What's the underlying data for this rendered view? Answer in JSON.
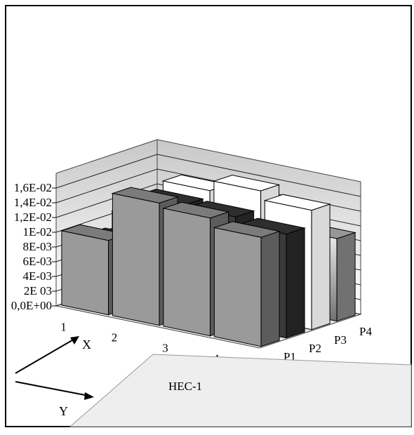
{
  "chart_data": {
    "type": "bar",
    "subtype": "3d-column",
    "categories": [
      "1",
      "2",
      "3",
      "4"
    ],
    "series": [
      {
        "name": "P1",
        "values": [
          0.0101,
          0.0166,
          0.016,
          0.0148
        ],
        "color": "#9a9a9a"
      },
      {
        "name": "P2",
        "values": [
          0.0085,
          0.0152,
          0.015,
          0.0141
        ],
        "color": "#3a3a3a"
      },
      {
        "name": "P3",
        "values": [
          0.0105,
          0.016,
          0.0174,
          0.0162
        ],
        "color": "#ffffff"
      },
      {
        "name": "P4",
        "values": [
          0.01,
          0.0125,
          0.0132,
          0.0112
        ],
        "color": "#bdbdbd"
      }
    ],
    "y_ticks": [
      "0,0E+00",
      "2E 03",
      "4E-03",
      "6E-03",
      "8E-03",
      "1E-02",
      "1,2E-02",
      "1,4E-02",
      "1,6E-02"
    ],
    "ylim": [
      0,
      0.018
    ],
    "x_axis_label": "X",
    "y_axis_label": "Y",
    "annotation": "HEC-1",
    "grid": true,
    "legend": "none"
  }
}
